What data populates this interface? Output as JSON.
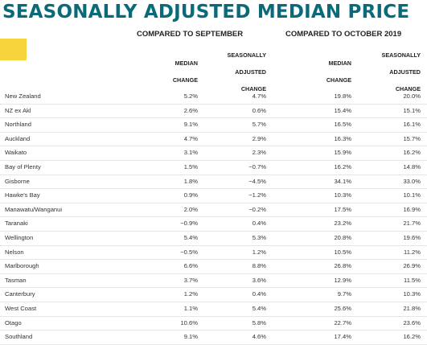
{
  "title": "SEASONALLY ADJUSTED MEDIAN PRICE",
  "groups": {
    "september": "COMPARED TO SEPTEMBER",
    "october": "COMPARED TO OCTOBER 2019"
  },
  "column_headers": {
    "median_change": [
      "MEDIAN",
      "CHANGE"
    ],
    "seasonally_adjusted_change": [
      "SEASONALLY",
      "ADJUSTED",
      "CHANGE"
    ]
  },
  "colors": {
    "title": "#0b6a7a",
    "accent": "#f7d43b"
  },
  "rows": [
    {
      "region": "New Zealand",
      "sep_median": "5.2%",
      "sep_sa": "4.7%",
      "oct_median": "19.8%",
      "oct_sa": "20.0%"
    },
    {
      "region": "NZ ex Akl",
      "sep_median": "2.6%",
      "sep_sa": "0.6%",
      "oct_median": "15.4%",
      "oct_sa": "15.1%"
    },
    {
      "region": "Northland",
      "sep_median": "9.1%",
      "sep_sa": "5.7%",
      "oct_median": "16.5%",
      "oct_sa": "16.1%"
    },
    {
      "region": "Auckland",
      "sep_median": "4.7%",
      "sep_sa": "2.9%",
      "oct_median": "16.3%",
      "oct_sa": "15.7%"
    },
    {
      "region": "Waikato",
      "sep_median": "3.1%",
      "sep_sa": "2.3%",
      "oct_median": "15.9%",
      "oct_sa": "16.2%"
    },
    {
      "region": "Bay of Plenty",
      "sep_median": "1.5%",
      "sep_sa": "−0.7%",
      "oct_median": "16.2%",
      "oct_sa": "14.8%"
    },
    {
      "region": "Gisborne",
      "sep_median": "1.8%",
      "sep_sa": "−4.5%",
      "oct_median": "34.1%",
      "oct_sa": "33.0%"
    },
    {
      "region": "Hawke's Bay",
      "sep_median": "0.9%",
      "sep_sa": "−1.2%",
      "oct_median": "10.3%",
      "oct_sa": "10.1%"
    },
    {
      "region": "Manawatu/Wanganui",
      "sep_median": "2.0%",
      "sep_sa": "−0.2%",
      "oct_median": "17.5%",
      "oct_sa": "16.9%"
    },
    {
      "region": "Taranaki",
      "sep_median": "−0.9%",
      "sep_sa": "0.4%",
      "oct_median": "23.2%",
      "oct_sa": "21.7%"
    },
    {
      "region": "Wellington",
      "sep_median": "5.4%",
      "sep_sa": "5.3%",
      "oct_median": "20.8%",
      "oct_sa": "19.6%"
    },
    {
      "region": "Nelson",
      "sep_median": "−0.5%",
      "sep_sa": "1.2%",
      "oct_median": "10.5%",
      "oct_sa": "11.2%"
    },
    {
      "region": "Marlborough",
      "sep_median": "6.6%",
      "sep_sa": "8.8%",
      "oct_median": "26.8%",
      "oct_sa": "26.9%"
    },
    {
      "region": "Tasman",
      "sep_median": "3.7%",
      "sep_sa": "3.6%",
      "oct_median": "12.9%",
      "oct_sa": "11.5%"
    },
    {
      "region": "Canterbury",
      "sep_median": "1.2%",
      "sep_sa": "0.4%",
      "oct_median": "9.7%",
      "oct_sa": "10.3%"
    },
    {
      "region": "West Coast",
      "sep_median": "1.1%",
      "sep_sa": "5.4%",
      "oct_median": "25.6%",
      "oct_sa": "21.8%"
    },
    {
      "region": "Otago",
      "sep_median": "10.6%",
      "sep_sa": "5.8%",
      "oct_median": "22.7%",
      "oct_sa": "23.6%"
    },
    {
      "region": "Southland",
      "sep_median": "9.1%",
      "sep_sa": "4.6%",
      "oct_median": "17.4%",
      "oct_sa": "16.2%"
    }
  ]
}
